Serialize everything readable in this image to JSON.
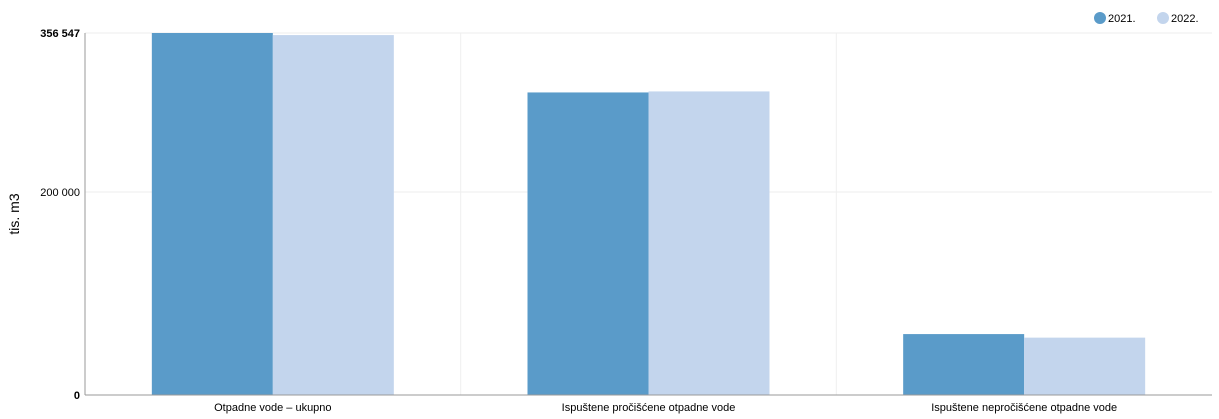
{
  "chart_data": {
    "type": "bar",
    "ylabel": "tis. m3",
    "ylim": [
      0,
      356547
    ],
    "y_ticks": [
      {
        "value": 0,
        "label": "0",
        "bold": true
      },
      {
        "value": 200000,
        "label": "200 000",
        "bold": false
      },
      {
        "value": 356547,
        "label": "356 547",
        "bold": true
      }
    ],
    "categories": [
      "Otpadne vode – ukupno",
      "Ispuštene pročišćene otpadne vode",
      "Ispuštene nepročišćene otpadne vode"
    ],
    "series": [
      {
        "name": "2021.",
        "color": "#5a9bc9",
        "values": [
          356547,
          298000,
          60000
        ]
      },
      {
        "name": "2022.",
        "color": "#c3d5ed",
        "values": [
          354500,
          299000,
          56500
        ]
      }
    ],
    "grid": true,
    "legend_position": "top-right"
  }
}
